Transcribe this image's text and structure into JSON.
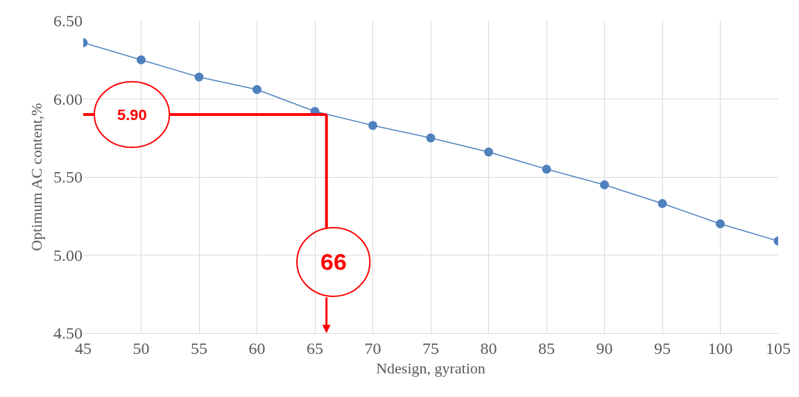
{
  "chart_data": {
    "type": "line",
    "xlabel": "Ndesign, gyration",
    "ylabel": "Optimum AC content,%",
    "x": [
      45,
      50,
      55,
      60,
      65,
      70,
      75,
      80,
      85,
      90,
      95,
      100,
      105
    ],
    "series": [
      {
        "color": "#4f81bd",
        "values": [
          6.36,
          6.25,
          6.14,
          6.06,
          5.92,
          5.83,
          5.75,
          5.66,
          5.55,
          5.45,
          5.33,
          5.2,
          5.09
        ]
      }
    ],
    "xlim": [
      45,
      105
    ],
    "xticks": [
      45,
      50,
      55,
      60,
      65,
      70,
      75,
      80,
      85,
      90,
      95,
      100,
      105
    ],
    "ylim": [
      4.5,
      6.5
    ],
    "yticks": [
      {
        "value": 4.5,
        "label": "4.50"
      },
      {
        "value": 5.0,
        "label": "5.00"
      },
      {
        "value": 5.5,
        "label": "5.50"
      },
      {
        "value": 6.0,
        "label": "6.00"
      },
      {
        "value": 6.5,
        "label": "6.50"
      }
    ],
    "ref_lines": [
      {
        "axis": "y",
        "value": 5.9,
        "label": "5.90",
        "color": "#ff0000"
      },
      {
        "axis": "x",
        "value": 66,
        "label": "66",
        "color": "#ff0000"
      }
    ],
    "grid": true,
    "marker": "circle",
    "line_style": "solid"
  }
}
